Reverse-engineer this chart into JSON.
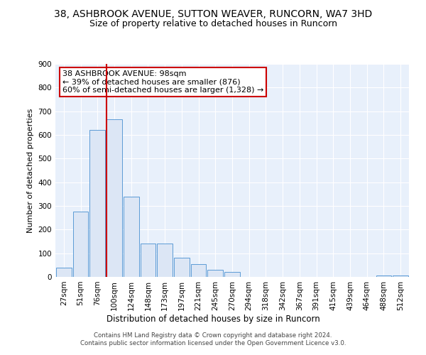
{
  "title1": "38, ASHBROOK AVENUE, SUTTON WEAVER, RUNCORN, WA7 3HD",
  "title2": "Size of property relative to detached houses in Runcorn",
  "xlabel": "Distribution of detached houses by size in Runcorn",
  "ylabel": "Number of detached properties",
  "footnote": "Contains HM Land Registry data © Crown copyright and database right 2024.\nContains public sector information licensed under the Open Government Licence v3.0.",
  "bar_labels": [
    "27sqm",
    "51sqm",
    "76sqm",
    "100sqm",
    "124sqm",
    "148sqm",
    "173sqm",
    "197sqm",
    "221sqm",
    "245sqm",
    "270sqm",
    "294sqm",
    "318sqm",
    "342sqm",
    "367sqm",
    "391sqm",
    "415sqm",
    "439sqm",
    "464sqm",
    "488sqm",
    "512sqm"
  ],
  "bar_values": [
    40,
    275,
    620,
    665,
    340,
    140,
    140,
    80,
    55,
    30,
    20,
    0,
    0,
    0,
    0,
    0,
    0,
    0,
    0,
    5,
    5
  ],
  "bar_color": "#dce6f5",
  "bar_edge_color": "#5b9bd5",
  "vline_x_idx": 3,
  "vline_color": "#cc0000",
  "annotation_text": "38 ASHBROOK AVENUE: 98sqm\n← 39% of detached houses are smaller (876)\n60% of semi-detached houses are larger (1,328) →",
  "annotation_box_color": "#cc0000",
  "ylim": [
    0,
    900
  ],
  "yticks": [
    0,
    100,
    200,
    300,
    400,
    500,
    600,
    700,
    800,
    900
  ],
  "background_color": "#e8f0fb",
  "title1_fontsize": 10,
  "title2_fontsize": 9,
  "xlabel_fontsize": 8.5,
  "ylabel_fontsize": 8,
  "tick_fontsize": 7.5,
  "annot_fontsize": 8
}
